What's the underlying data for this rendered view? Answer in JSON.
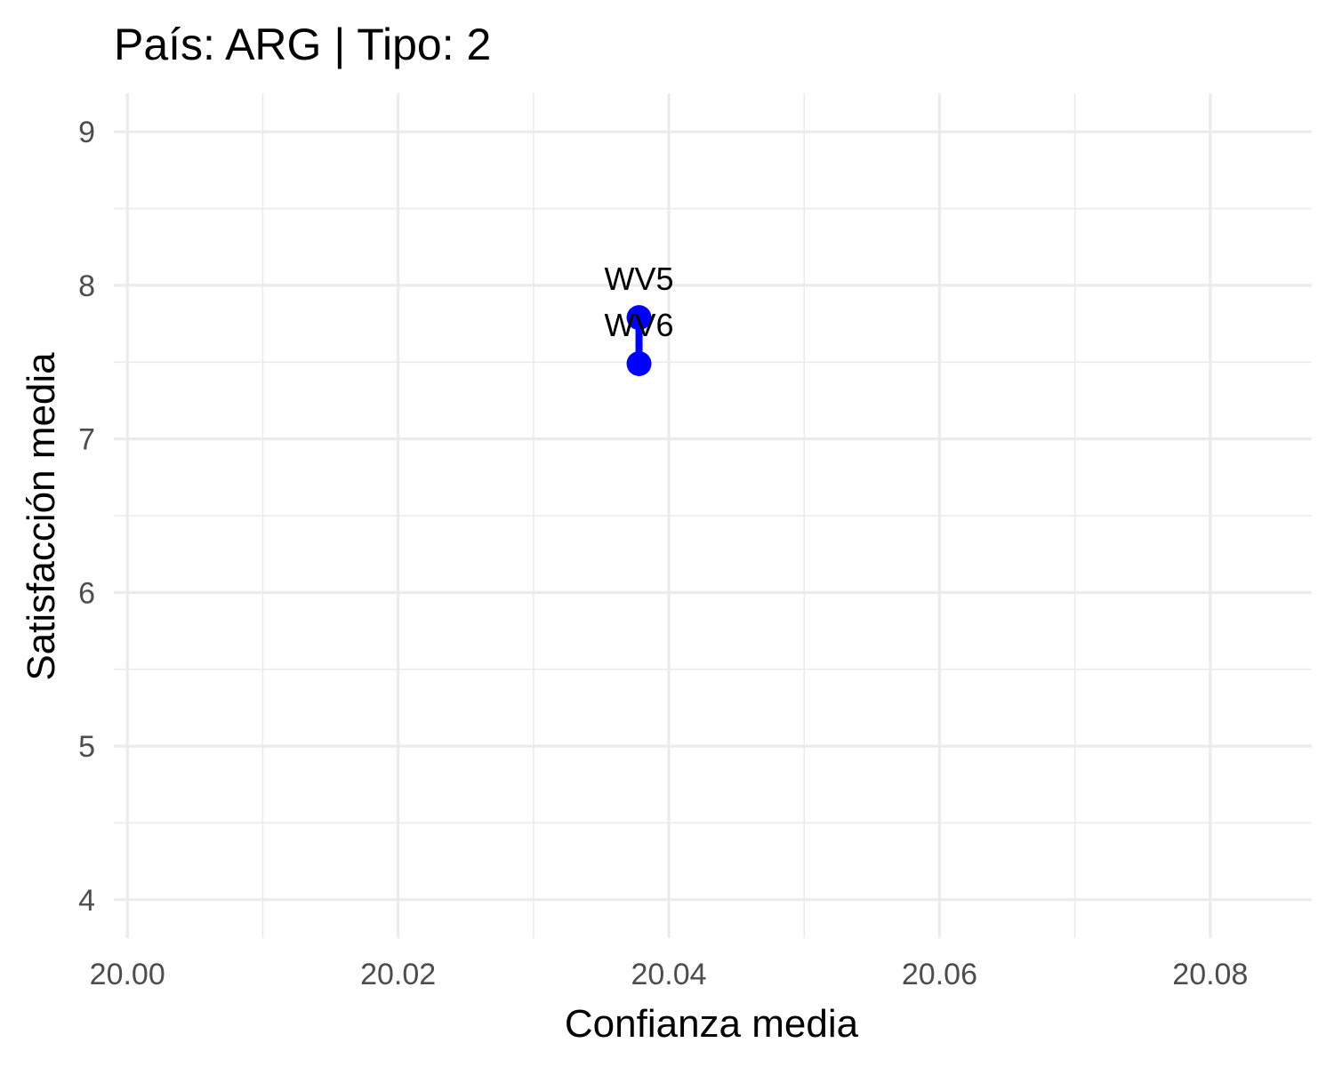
{
  "chart_data": {
    "type": "line",
    "title": "País: ARG | Tipo: 2",
    "xlabel": "Confianza media",
    "ylabel": "Satisfacción media",
    "xlim": [
      19.999,
      20.0875
    ],
    "ylim": [
      3.75,
      9.25
    ],
    "x_ticks": [
      20.0,
      20.02,
      20.04,
      20.06,
      20.08
    ],
    "x_tick_labels": [
      "20.00",
      "20.02",
      "20.04",
      "20.06",
      "20.08"
    ],
    "y_ticks": [
      4,
      5,
      6,
      7,
      8,
      9
    ],
    "y_tick_labels": [
      "4",
      "5",
      "6",
      "7",
      "8",
      "9"
    ],
    "grid": true,
    "series": [
      {
        "color": "#0000ff",
        "points": [
          {
            "label": "WV5",
            "x": 20.0378,
            "y": 7.79
          },
          {
            "label": "WV6",
            "x": 20.0378,
            "y": 7.49
          }
        ]
      }
    ]
  }
}
